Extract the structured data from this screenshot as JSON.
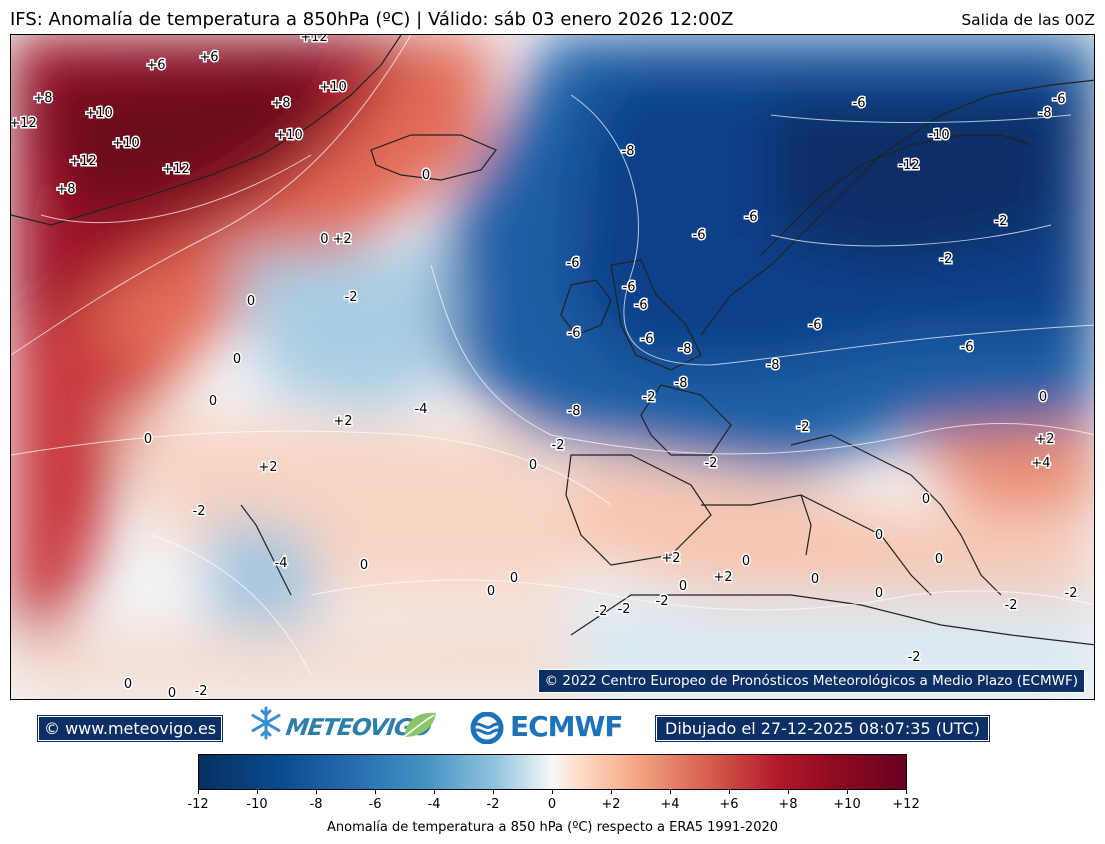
{
  "header": {
    "title": "IFS: Anomalía de temperatura a 850hPa  (ºC) | Válido: sáb 03 enero 2026 12:00Z",
    "run": "Salida de las 00Z"
  },
  "map": {
    "copyright": "© 2022 Centro Europeo de Pronósticos Meteorológicos a Medio Plazo (ECMWF)",
    "contour_labels": [
      "+12",
      "+6",
      "+6",
      "+10",
      "+8",
      "+12",
      "+10",
      "+8",
      "+10",
      "+10",
      "+12",
      "+8",
      "+12",
      "-6",
      "-6",
      "-8",
      "-10",
      "-12",
      "-8",
      "0",
      "0 +2",
      "-2",
      "-2",
      "0",
      "0",
      "-6",
      "-6",
      "-6",
      "-6",
      "-6",
      "-6",
      "-6",
      "-6",
      "-2",
      "-2",
      "-2",
      "0",
      "0",
      "-6",
      "-8",
      "-8",
      "-8",
      "-8",
      "+2",
      "-4",
      "0",
      "-2",
      "-2",
      "0",
      "+2",
      "+4",
      "+2",
      "0",
      "-2",
      "0",
      "-2",
      "0",
      "0",
      "-4",
      "0",
      "0",
      "0",
      "+2",
      "+2",
      "0",
      "0",
      "0",
      "-2",
      "-2",
      "-2",
      "-2",
      "-2",
      "-2",
      "0",
      "0",
      "-2"
    ]
  },
  "branding": {
    "site": "© www.meteovigo.es",
    "logo_meteovigo": "METEOVIGO",
    "logo_ecmwf": "ECMWF",
    "drawn": "Dibujado el 27-12-2025 08:07:35 (UTC)",
    "colors": {
      "badge": "#0c2f66",
      "meteovigo": "#2d7ea8",
      "ecmwf": "#1d72b8"
    }
  },
  "colorbar": {
    "ticks": [
      "-12",
      "-10",
      "-8",
      "-6",
      "-4",
      "-2",
      "0",
      "+2",
      "+4",
      "+6",
      "+8",
      "+10",
      "+12"
    ],
    "label": "Anomalía de temperatura a 850 hPa (ºC) respecto a ERA5 1991-2020",
    "colors": [
      "#053061",
      "#2166ac",
      "#4393c3",
      "#92c5de",
      "#f7f7f7",
      "#f4a582",
      "#d6604d",
      "#b2182b",
      "#67001f"
    ]
  }
}
